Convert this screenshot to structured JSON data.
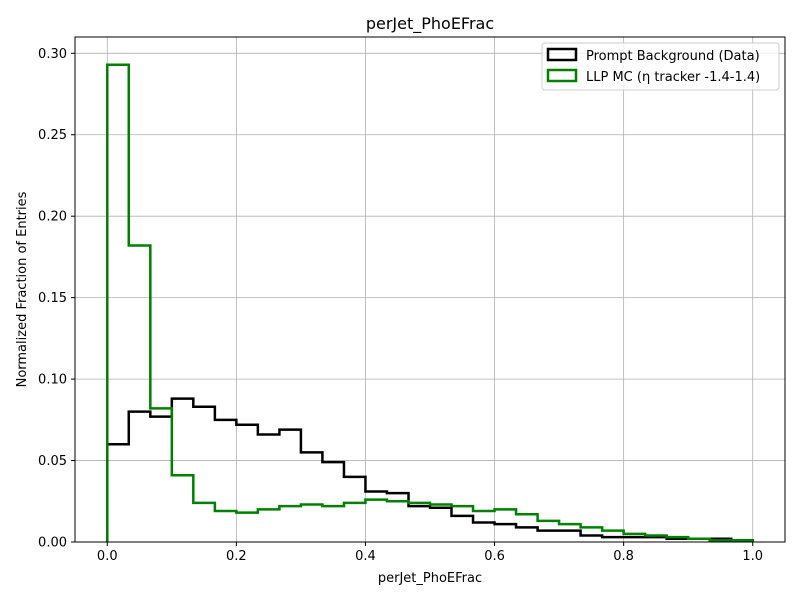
{
  "chart_data": {
    "type": "histogram",
    "title": "perJet_PhoEFrac",
    "xlabel": "perJet_PhoEFrac",
    "ylabel": "Normalized Fraction of Entries",
    "xlim": [
      -0.05,
      1.05
    ],
    "ylim": [
      0,
      0.31
    ],
    "xticks": [
      0.0,
      0.2,
      0.4,
      0.6,
      0.8,
      1.0
    ],
    "xtick_labels": [
      "0.0",
      "0.2",
      "0.4",
      "0.6",
      "0.8",
      "1.0"
    ],
    "yticks": [
      0.0,
      0.05,
      0.1,
      0.15,
      0.2,
      0.25,
      0.3
    ],
    "ytick_labels": [
      "0.00",
      "0.05",
      "0.10",
      "0.15",
      "0.20",
      "0.25",
      "0.30"
    ],
    "grid": true,
    "legend_position": "top-right",
    "bin_edges": [
      0.0,
      0.0333,
      0.0667,
      0.1,
      0.1333,
      0.1667,
      0.2,
      0.2333,
      0.2667,
      0.3,
      0.3333,
      0.3667,
      0.4,
      0.4333,
      0.4667,
      0.5,
      0.5333,
      0.5667,
      0.6,
      0.6333,
      0.6667,
      0.7,
      0.7333,
      0.7667,
      0.8,
      0.8333,
      0.8667,
      0.9,
      0.9333,
      0.9667,
      1.0
    ],
    "series": [
      {
        "name": "Prompt Background (Data)",
        "color": "#000000",
        "values": [
          0.06,
          0.08,
          0.077,
          0.088,
          0.083,
          0.075,
          0.072,
          0.066,
          0.069,
          0.055,
          0.049,
          0.04,
          0.031,
          0.03,
          0.022,
          0.021,
          0.016,
          0.012,
          0.011,
          0.009,
          0.007,
          0.007,
          0.004,
          0.003,
          0.003,
          0.003,
          0.002,
          0.002,
          0.002,
          0.001
        ]
      },
      {
        "name": "LLP MC (η tracker -1.4-1.4)",
        "color": "#008000",
        "values": [
          0.293,
          0.182,
          0.082,
          0.041,
          0.024,
          0.019,
          0.018,
          0.02,
          0.022,
          0.023,
          0.022,
          0.024,
          0.026,
          0.025,
          0.024,
          0.023,
          0.022,
          0.019,
          0.02,
          0.017,
          0.013,
          0.011,
          0.009,
          0.007,
          0.005,
          0.004,
          0.003,
          0.002,
          0.001,
          0.001
        ]
      }
    ]
  }
}
